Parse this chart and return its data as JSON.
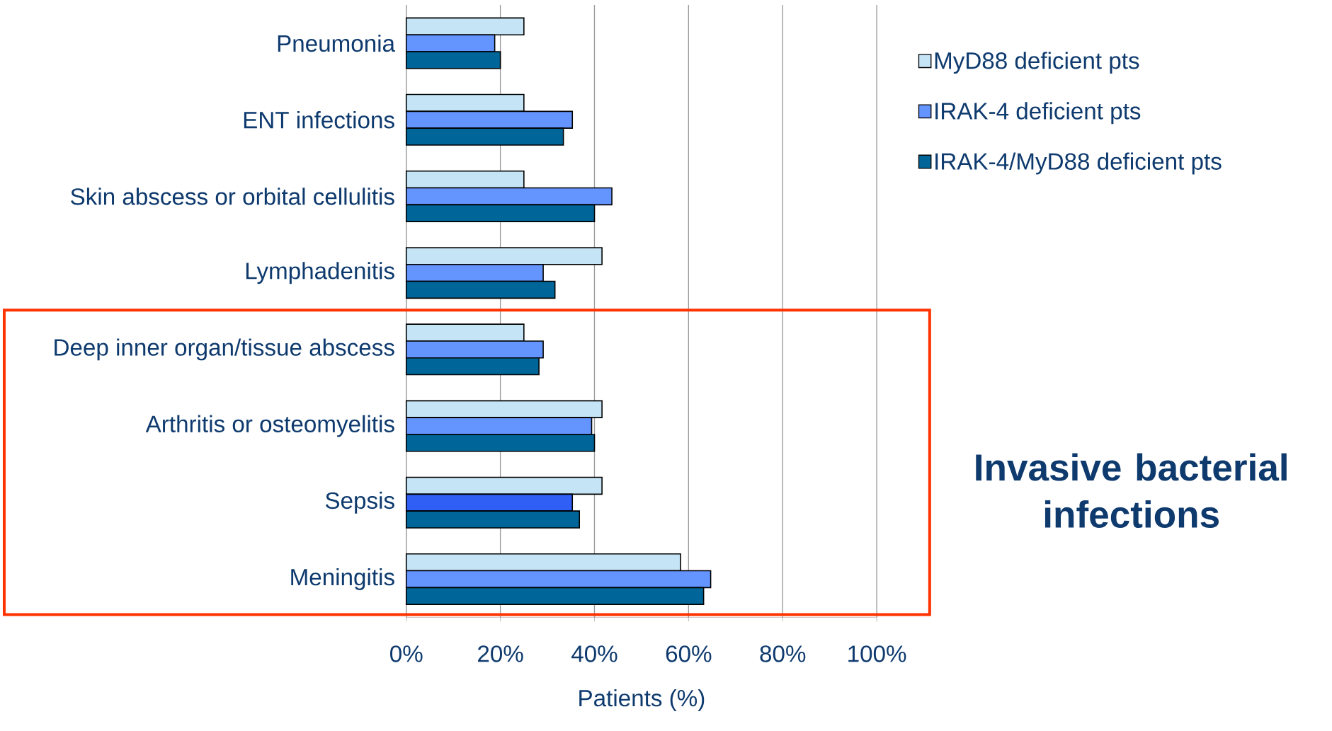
{
  "chart_data": {
    "type": "bar",
    "orientation": "horizontal",
    "xlabel": "Patients (%)",
    "categories": [
      "Pneumonia",
      "ENT infections",
      "Skin abscess or orbital cellulitis",
      "Lymphadenitis",
      "Deep inner organ/tissue abscess",
      "Arthritis or osteomyelitis",
      "Sepsis",
      "Meningitis"
    ],
    "series": [
      {
        "name": "MyD88 deficient pts",
        "color": "#c5e4f6",
        "values": [
          25,
          25,
          25,
          41.6,
          25,
          41.6,
          41.6,
          58.3
        ]
      },
      {
        "name": "IRAK-4 deficient pts",
        "color": "#6495ff",
        "colors": [
          "#6495ff",
          "#6495ff",
          "#6495ff",
          "#6495ff",
          "#6495ff",
          "#6495ff",
          "#2f5ff5",
          "#6495ff"
        ],
        "values": [
          18.8,
          35.3,
          43.7,
          29.1,
          29.1,
          39.4,
          35.3,
          64.7
        ]
      },
      {
        "name": "IRAK-4/MyD88 deficient pts",
        "color": "#006699",
        "values": [
          20,
          33.4,
          40,
          31.6,
          28.2,
          40,
          36.8,
          63.2
        ]
      }
    ],
    "xlim": [
      0,
      100
    ],
    "xticks": [
      {
        "value": 0,
        "label": "0%"
      },
      {
        "value": 20,
        "label": "20%"
      },
      {
        "value": 40,
        "label": "40%"
      },
      {
        "value": 60,
        "label": "60%"
      },
      {
        "value": 80,
        "label": "80%"
      },
      {
        "value": 100,
        "label": "100%"
      }
    ],
    "grid": "x",
    "legend": "right",
    "annotations": [
      "Invasive bacterial infections"
    ]
  }
}
